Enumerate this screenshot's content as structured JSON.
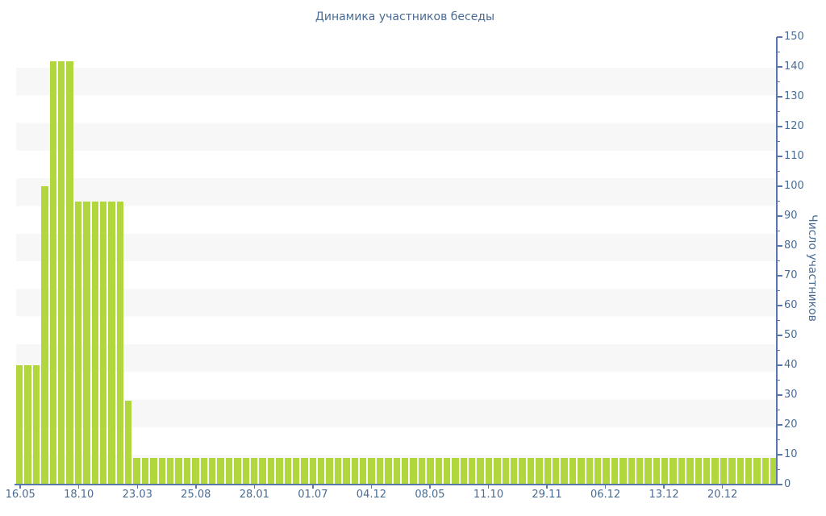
{
  "title": "Динамика участников беседы",
  "colors": {
    "bar": "#b2d73d",
    "axis_line": "#5878ad",
    "text": "#4a6b94",
    "stripe": "#f7f7f7",
    "background": "#ffffff"
  },
  "chart_data": {
    "type": "bar",
    "title": "Динамика участников беседы",
    "xlabel": "",
    "ylabel": "Число участников",
    "ylim": [
      0,
      150
    ],
    "y_tick_step": 10,
    "y_minor_tick_step": 5,
    "legend_position": "none",
    "grid": "alternating horizontal bands",
    "x_tick_labels": [
      "16.05",
      "18.10",
      "23.03",
      "25.08",
      "28.01",
      "01.07",
      "04.12",
      "08.05",
      "11.10",
      "29.11",
      "06.12",
      "13.12",
      "20.12"
    ],
    "x_label_every_n_bars": 7,
    "bar_count": 91,
    "values": [
      40,
      40,
      40,
      100,
      142,
      142,
      142,
      95,
      95,
      95,
      95,
      95,
      95,
      28,
      9,
      9,
      9,
      9,
      9,
      9,
      9,
      9,
      9,
      9,
      9,
      9,
      9,
      9,
      9,
      9,
      9,
      9,
      9,
      9,
      9,
      9,
      9,
      9,
      9,
      9,
      9,
      9,
      9,
      9,
      9,
      9,
      9,
      9,
      9,
      9,
      9,
      9,
      9,
      9,
      9,
      9,
      9,
      9,
      9,
      9,
      9,
      9,
      9,
      9,
      9,
      9,
      9,
      9,
      9,
      9,
      9,
      9,
      9,
      9,
      9,
      9,
      9,
      9,
      9,
      9,
      9,
      9,
      9,
      9,
      9,
      9,
      9,
      9,
      9,
      9,
      9
    ]
  }
}
